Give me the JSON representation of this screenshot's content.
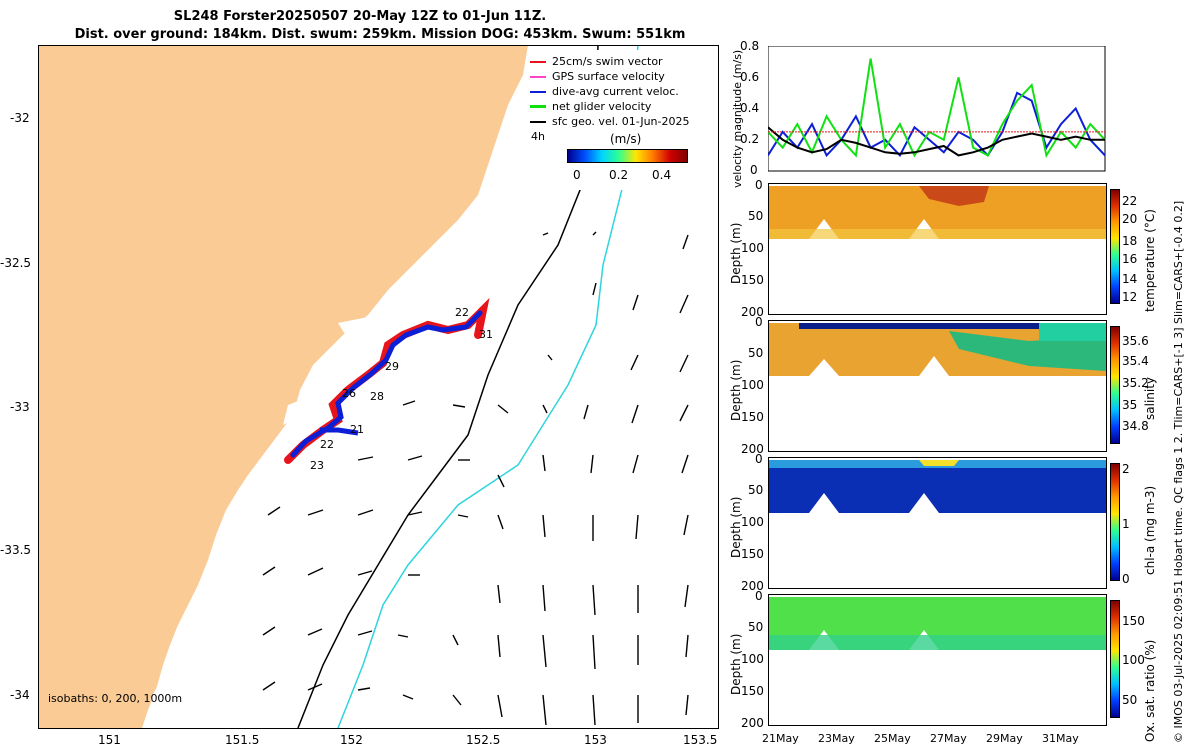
{
  "title": {
    "line1": "SL248 Forster20250507 20-May 12Z to 01-Jun 11Z.",
    "line2": "Dist. over ground: 184km. Dist. swum: 259km. Mission DOG: 453km. Swum: 551km"
  },
  "map": {
    "x_ticks": [
      "151",
      "151.5",
      "152",
      "152.5",
      "153",
      "153.5"
    ],
    "y_ticks": [
      "-32",
      "-32.5",
      "-33",
      "-33.5",
      "-34"
    ],
    "isobaths_label": "isobaths: 0, 200, 1000m",
    "day_labels": [
      "22",
      "31",
      "29",
      "26",
      "28",
      "21",
      "22",
      "23"
    ],
    "colors": {
      "land": "#fbcb96",
      "sea": "#ffffff",
      "isobath200": "#000000",
      "isobath1000": "#2fd4dc"
    }
  },
  "legend": {
    "items": [
      {
        "label": "25cm/s swim vector",
        "color": "#e8141b"
      },
      {
        "label": "GPS surface velocity",
        "color": "#ff44c8"
      },
      {
        "label": "dive-avg current veloc.",
        "color": "#0b1fd6"
      },
      {
        "label": "net glider velocity",
        "color": "#11e011"
      },
      {
        "label": "sfc geo. vel. 01-Jun-2025",
        "color": "#000000"
      }
    ],
    "interval": "4h",
    "units": "(m/s)",
    "cbar_ticks": [
      "0",
      "0.2",
      "0.4"
    ]
  },
  "velocity_panel": {
    "ylabel": "velocity magnitude (m/s)",
    "ylim": [
      0,
      0.8
    ],
    "yticks": [
      "0",
      "0.2",
      "0.4",
      "0.6",
      "0.8"
    ],
    "threshold": 0.25
  },
  "sections": [
    {
      "label": "temperature (°C)",
      "cbar_ticks": [
        "22",
        "20",
        "18",
        "16",
        "14",
        "12"
      ],
      "ylabel": "Depth (m)"
    },
    {
      "label": "salinity",
      "cbar_ticks": [
        "35.6",
        "35.4",
        "35.2",
        "35",
        "34.8"
      ],
      "ylabel": "Depth (m)"
    },
    {
      "label": "chl-a (mg m-3)",
      "cbar_ticks": [
        "2",
        "1",
        "0"
      ],
      "ylabel": "Depth (m)"
    },
    {
      "label": "Ox. sat. ratio (%)",
      "cbar_ticks": [
        "150",
        "100",
        "50"
      ],
      "ylabel": "Depth (m)"
    }
  ],
  "depth_ticks": [
    "0",
    "50",
    "100",
    "150",
    "200"
  ],
  "time_ticks": [
    "21May",
    "23May",
    "25May",
    "27May",
    "29May",
    "31May"
  ],
  "side_note": "© IMOS 03-Jul-2025 02:09:51 Hobart time. QC flags 1  2. Tlim=CARS+[-1 3] Slim=CARS+[-0.4 0.2]",
  "chart_data": {
    "type": "line",
    "title": "velocity magnitude",
    "ylabel": "velocity magnitude (m/s)",
    "xlabel": "",
    "ylim": [
      0,
      0.8
    ],
    "x": [
      20.5,
      21,
      21.5,
      22,
      22.5,
      23,
      23.5,
      24,
      24.5,
      25,
      25.5,
      26,
      26.5,
      27,
      27.5,
      28,
      28.5,
      29,
      29.5,
      30,
      30.5,
      31,
      31.5,
      32
    ],
    "categories": [
      "21May",
      "23May",
      "25May",
      "27May",
      "29May",
      "31May"
    ],
    "series": [
      {
        "name": "dive-avg current veloc.",
        "color": "#0b1fd6",
        "values": [
          0.1,
          0.25,
          0.15,
          0.3,
          0.1,
          0.2,
          0.35,
          0.15,
          0.2,
          0.1,
          0.28,
          0.2,
          0.12,
          0.25,
          0.2,
          0.1,
          0.25,
          0.5,
          0.45,
          0.15,
          0.3,
          0.4,
          0.2,
          0.1
        ]
      },
      {
        "name": "net glider velocity",
        "color": "#11e011",
        "values": [
          0.25,
          0.15,
          0.3,
          0.12,
          0.35,
          0.2,
          0.1,
          0.72,
          0.15,
          0.3,
          0.1,
          0.25,
          0.2,
          0.6,
          0.15,
          0.1,
          0.3,
          0.45,
          0.55,
          0.1,
          0.25,
          0.15,
          0.3,
          0.2
        ]
      },
      {
        "name": "sfc geo. vel.",
        "color": "#000000",
        "values": [
          0.28,
          0.2,
          0.15,
          0.12,
          0.14,
          0.2,
          0.18,
          0.15,
          0.12,
          0.11,
          0.12,
          0.14,
          0.16,
          0.1,
          0.12,
          0.15,
          0.2,
          0.22,
          0.24,
          0.22,
          0.2,
          0.22,
          0.2,
          0.2
        ]
      },
      {
        "name": "25cm/s swim vector",
        "color": "#e8141b",
        "values": [
          0.25,
          0.25,
          0.25,
          0.25,
          0.25,
          0.25,
          0.25,
          0.25,
          0.25,
          0.25,
          0.25,
          0.25,
          0.25,
          0.25,
          0.25,
          0.25,
          0.25,
          0.25,
          0.25,
          0.25,
          0.25,
          0.25,
          0.25,
          0.25
        ]
      }
    ]
  }
}
